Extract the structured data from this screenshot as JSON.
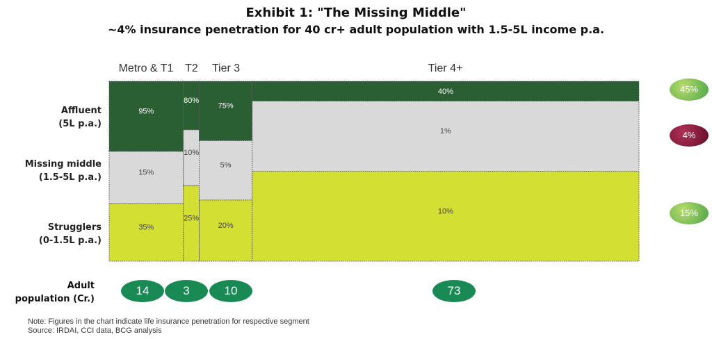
{
  "title": "Exhibit 1: \"The Missing Middle\"",
  "subtitle": "~4% insurance penetration for 40 cr+ adult population with 1.5-5L income p.a.",
  "columns": [
    "Metro & T1",
    "T2",
    "Tier 3",
    "Tier 4+"
  ],
  "rows": [
    {
      "line1": "Affluent",
      "line2": "(5L p.a.)"
    },
    {
      "line1": "Missing middle",
      "line2": "(1.5-5L p.a.)"
    },
    {
      "line1": "Strugglers",
      "line2": "(0-1.5L p.a.)"
    }
  ],
  "population_label_line1": "Adult",
  "population_label_line2": "population (Cr.)",
  "population": [
    "14",
    "3",
    "10",
    "73"
  ],
  "totals": {
    "affluent": "45%",
    "missing_middle": "4%",
    "strugglers": "15%"
  },
  "note": "Note: Figures in the chart indicate life insurance penetration for respective segment",
  "source": "Source: IRDAI, CCI data, BCG analysis",
  "colors": {
    "affluent": "#2a5e33",
    "missing_middle": "#d9d9d9",
    "strugglers": "#d4df33",
    "badge_green": "#7fbf50",
    "badge_maroon": "#7a1636"
  },
  "chart_data": {
    "type": "marimekko",
    "categories": [
      "Metro & T1",
      "T2",
      "Tier 3",
      "Tier 4+"
    ],
    "column_widths": [
      14,
      3,
      10,
      73
    ],
    "series": [
      {
        "name": "Affluent",
        "segment_share": [
          0.39,
          0.27,
          0.33,
          0.11
        ],
        "labels": [
          "95%",
          "80%",
          "75%",
          "40%"
        ]
      },
      {
        "name": "Missing middle",
        "segment_share": [
          0.29,
          0.31,
          0.33,
          0.39
        ],
        "labels": [
          "15%",
          "10%",
          "5%",
          "1%"
        ]
      },
      {
        "name": "Strugglers",
        "segment_share": [
          0.32,
          0.42,
          0.34,
          0.5
        ],
        "labels": [
          "35%",
          "25%",
          "20%",
          "10%"
        ]
      }
    ]
  }
}
